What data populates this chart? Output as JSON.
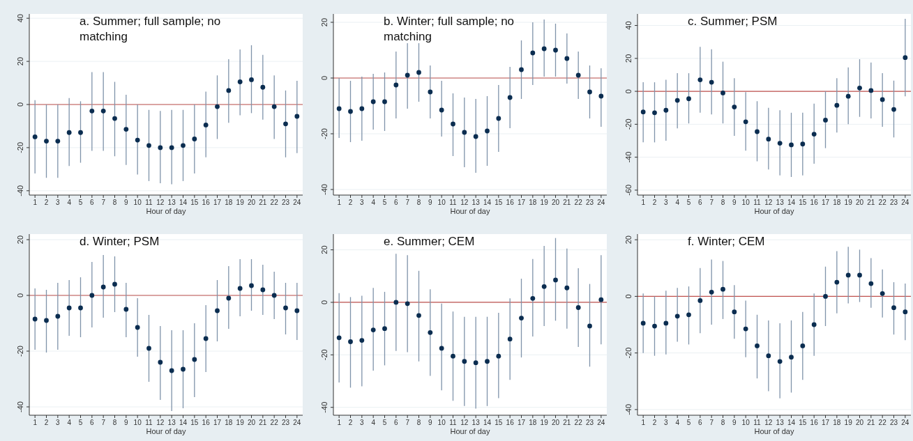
{
  "chart_data": [
    {
      "type": "scatter",
      "title": "a. Summer; full sample; no matching",
      "xlabel": "Hour of day",
      "x": [
        1,
        2,
        3,
        4,
        5,
        6,
        7,
        8,
        9,
        10,
        11,
        12,
        13,
        14,
        15,
        16,
        17,
        18,
        19,
        20,
        21,
        22,
        23,
        24
      ],
      "xlim": [
        0.5,
        24.5
      ],
      "xticks": [
        1,
        2,
        3,
        4,
        5,
        6,
        7,
        8,
        9,
        10,
        11,
        12,
        13,
        14,
        15,
        16,
        17,
        18,
        19,
        20,
        21,
        22,
        23,
        24
      ],
      "ylim": [
        -42,
        42
      ],
      "yticks": [
        -40,
        -20,
        0,
        20,
        40
      ],
      "grid": "y",
      "marker": "circle",
      "ref_lines": [
        {
          "axis": "y",
          "value": 0,
          "color": "#c0504d"
        }
      ],
      "series": [
        {
          "color": "#0b2d50",
          "values": [
            -15,
            -17,
            -17,
            -13,
            -13,
            -3,
            -3,
            -6.5,
            -11.5,
            -16.5,
            -19,
            -20,
            -20,
            -19,
            -16,
            -9.5,
            -1,
            6.5,
            10.5,
            11.5,
            8,
            -1,
            -9,
            -5.5
          ],
          "errors": [
            [
              -32,
              2
            ],
            [
              -34,
              0
            ],
            [
              -34,
              0
            ],
            [
              -28.5,
              3
            ],
            [
              -27,
              1.5
            ],
            [
              -21.5,
              15
            ],
            [
              -21.5,
              15
            ],
            [
              -24,
              10.5
            ],
            [
              -28,
              4.5
            ],
            [
              -32.5,
              0
            ],
            [
              -35.5,
              -2.5
            ],
            [
              -36.5,
              -3
            ],
            [
              -37,
              -2.5
            ],
            [
              -35.5,
              -2.5
            ],
            [
              -32,
              0
            ],
            [
              -24.5,
              6
            ],
            [
              -16,
              13.5
            ],
            [
              -8.5,
              21
            ],
            [
              -5,
              25.5
            ],
            [
              -4,
              27.5
            ],
            [
              -7,
              23
            ],
            [
              -16,
              13.5
            ],
            [
              -24.5,
              6.5
            ],
            [
              -22.5,
              11
            ]
          ]
        }
      ]
    },
    {
      "type": "scatter",
      "title": "b. Winter; full sample; no matching",
      "xlabel": "Hour of day",
      "x": [
        1,
        2,
        3,
        4,
        5,
        6,
        7,
        8,
        9,
        10,
        11,
        12,
        13,
        14,
        15,
        16,
        17,
        18,
        19,
        20,
        21,
        22,
        23,
        24
      ],
      "xlim": [
        0.5,
        24.5
      ],
      "xticks": [
        1,
        2,
        3,
        4,
        5,
        6,
        7,
        8,
        9,
        10,
        11,
        12,
        13,
        14,
        15,
        16,
        17,
        18,
        19,
        20,
        21,
        22,
        23,
        24
      ],
      "ylim": [
        -42,
        23
      ],
      "yticks": [
        -40,
        -20,
        0,
        20
      ],
      "grid": "y",
      "marker": "circle",
      "ref_lines": [
        {
          "axis": "y",
          "value": 0,
          "color": "#c0504d"
        }
      ],
      "series": [
        {
          "color": "#0b2d50",
          "values": [
            -11,
            -12,
            -11,
            -8.5,
            -8.5,
            -2.5,
            1,
            2,
            -5,
            -11.5,
            -16.5,
            -19.5,
            -21,
            -19,
            -14.5,
            -7,
            3,
            9,
            10.5,
            10,
            7,
            1,
            -5,
            -6.5
          ],
          "errors": [
            [
              -21.5,
              0
            ],
            [
              -23,
              -1
            ],
            [
              -22.5,
              0.5
            ],
            [
              -18.5,
              1.5
            ],
            [
              -19,
              2
            ],
            [
              -14.5,
              9.5
            ],
            [
              -11,
              12.5
            ],
            [
              -8.5,
              12.5
            ],
            [
              -14.5,
              4.5
            ],
            [
              -21,
              -1
            ],
            [
              -28,
              -5.5
            ],
            [
              -32,
              -7
            ],
            [
              -34,
              -7.5
            ],
            [
              -31.5,
              -6.5
            ],
            [
              -26.5,
              -2.5
            ],
            [
              -18,
              4
            ],
            [
              -7.5,
              13.5
            ],
            [
              -2.5,
              20
            ],
            [
              0.5,
              21
            ],
            [
              0.5,
              19.5
            ],
            [
              -2,
              16
            ],
            [
              -7.5,
              9.5
            ],
            [
              -14.5,
              4.5
            ],
            [
              -17.5,
              3.5
            ]
          ]
        }
      ]
    },
    {
      "type": "scatter",
      "title": "c. Summer; PSM",
      "xlabel": "Hour of day",
      "x": [
        1,
        2,
        3,
        4,
        5,
        6,
        7,
        8,
        9,
        10,
        11,
        12,
        13,
        14,
        15,
        16,
        17,
        18,
        19,
        20,
        21,
        22,
        23,
        24
      ],
      "xlim": [
        0.5,
        24.5
      ],
      "xticks": [
        1,
        2,
        3,
        4,
        5,
        6,
        7,
        8,
        9,
        10,
        11,
        12,
        13,
        14,
        15,
        16,
        17,
        18,
        19,
        20,
        21,
        22,
        23,
        24
      ],
      "ylim": [
        -63,
        47
      ],
      "yticks": [
        -60,
        -40,
        -20,
        0,
        20,
        40
      ],
      "grid": "y",
      "marker": "circle",
      "ref_lines": [
        {
          "axis": "y",
          "value": 0,
          "color": "#c0504d"
        }
      ],
      "series": [
        {
          "color": "#0b2d50",
          "values": [
            -12.5,
            -13,
            -11.5,
            -5.5,
            -4.5,
            7,
            5.5,
            -1,
            -9.5,
            -18.5,
            -24.5,
            -29,
            -31.5,
            -32.5,
            -32,
            -26,
            -17.5,
            -8.5,
            -3,
            2,
            0.5,
            -5,
            -11,
            20.5
          ],
          "errors": [
            [
              -31,
              5.5
            ],
            [
              -31,
              5.5
            ],
            [
              -30,
              7
            ],
            [
              -22.5,
              11
            ],
            [
              -19.5,
              11
            ],
            [
              -13,
              27
            ],
            [
              -14,
              25.5
            ],
            [
              -19.5,
              18
            ],
            [
              -27,
              8
            ],
            [
              -36,
              -0.5
            ],
            [
              -42.5,
              -6
            ],
            [
              -47.5,
              -10
            ],
            [
              -51,
              -11.5
            ],
            [
              -52,
              -13
            ],
            [
              -51,
              -13
            ],
            [
              -44,
              -7.5
            ],
            [
              -34.5,
              0
            ],
            [
              -25,
              8
            ],
            [
              -20,
              14.5
            ],
            [
              -15.5,
              19.5
            ],
            [
              -16.5,
              17.5
            ],
            [
              -21.5,
              11
            ],
            [
              -28,
              6.5
            ],
            [
              -3,
              44
            ]
          ]
        }
      ]
    },
    {
      "type": "scatter",
      "title": "d. Winter; PSM",
      "xlabel": "Hour of day",
      "x": [
        1,
        2,
        3,
        4,
        5,
        6,
        7,
        8,
        9,
        10,
        11,
        12,
        13,
        14,
        15,
        16,
        17,
        18,
        19,
        20,
        21,
        22,
        23,
        24
      ],
      "xlim": [
        0.5,
        24.5
      ],
      "xticks": [
        1,
        2,
        3,
        4,
        5,
        6,
        7,
        8,
        9,
        10,
        11,
        12,
        13,
        14,
        15,
        16,
        17,
        18,
        19,
        20,
        21,
        22,
        23,
        24
      ],
      "ylim": [
        -43,
        22
      ],
      "yticks": [
        -40,
        -20,
        0,
        20
      ],
      "grid": "y",
      "marker": "circle",
      "ref_lines": [
        {
          "axis": "y",
          "value": 0,
          "color": "#c0504d"
        }
      ],
      "series": [
        {
          "color": "#0b2d50",
          "values": [
            -8.5,
            -9,
            -7.5,
            -4.5,
            -4.5,
            0,
            3,
            4,
            -5,
            -11.5,
            -19,
            -24,
            -27,
            -26.5,
            -23,
            -15.5,
            -5.5,
            -1,
            2.5,
            3.5,
            2,
            0,
            -4.5,
            -5.5
          ],
          "errors": [
            [
              -19.5,
              2.5
            ],
            [
              -20.5,
              2
            ],
            [
              -19.5,
              4.5
            ],
            [
              -14.5,
              5.5
            ],
            [
              -15,
              6.5
            ],
            [
              -11.5,
              12
            ],
            [
              -8,
              14.5
            ],
            [
              -6,
              14
            ],
            [
              -15,
              4.5
            ],
            [
              -22,
              -1
            ],
            [
              -31,
              -7
            ],
            [
              -37.5,
              -11
            ],
            [
              -41.5,
              -12.5
            ],
            [
              -40.5,
              -12.5
            ],
            [
              -36.5,
              -10
            ],
            [
              -27.5,
              -3.5
            ],
            [
              -16.5,
              5.5
            ],
            [
              -12,
              10.5
            ],
            [
              -7.5,
              13
            ],
            [
              -5.5,
              13
            ],
            [
              -7,
              11
            ],
            [
              -8.5,
              8.5
            ],
            [
              -14,
              4.5
            ],
            [
              -16,
              4.5
            ]
          ]
        }
      ]
    },
    {
      "type": "scatter",
      "title": "e. Summer; CEM",
      "xlabel": "Hour of day",
      "x": [
        1,
        2,
        3,
        4,
        5,
        6,
        7,
        8,
        9,
        10,
        11,
        12,
        13,
        14,
        15,
        16,
        17,
        18,
        19,
        20,
        21,
        22,
        23,
        24
      ],
      "xlim": [
        0.5,
        24.5
      ],
      "xticks": [
        1,
        2,
        3,
        4,
        5,
        6,
        7,
        8,
        9,
        10,
        11,
        12,
        13,
        14,
        15,
        16,
        17,
        18,
        19,
        20,
        21,
        22,
        23,
        24
      ],
      "ylim": [
        -43,
        26
      ],
      "yticks": [
        -40,
        -20,
        0,
        20
      ],
      "grid": "y",
      "marker": "circle",
      "ref_lines": [
        {
          "axis": "y",
          "value": 0,
          "color": "#c0504d"
        }
      ],
      "series": [
        {
          "color": "#0b2d50",
          "values": [
            -13.5,
            -15,
            -14.5,
            -10.5,
            -10,
            0,
            -0.5,
            -5,
            -11.5,
            -17.5,
            -20.5,
            -22.5,
            -23,
            -22.5,
            -20.5,
            -14,
            -6,
            1.5,
            6,
            8.5,
            5.5,
            -2,
            -9,
            1
          ],
          "errors": [
            [
              -30.5,
              3.5
            ],
            [
              -32.5,
              2
            ],
            [
              -32,
              2.5
            ],
            [
              -26,
              5.5
            ],
            [
              -24,
              4
            ],
            [
              -18.5,
              18.5
            ],
            [
              -19,
              18
            ],
            [
              -22.5,
              12
            ],
            [
              -28,
              5
            ],
            [
              -33.5,
              -0.5
            ],
            [
              -37.5,
              -3.5
            ],
            [
              -39.5,
              -5.5
            ],
            [
              -40.5,
              -5.5
            ],
            [
              -39.5,
              -5.5
            ],
            [
              -36.5,
              -4
            ],
            [
              -29.5,
              1.5
            ],
            [
              -21,
              9
            ],
            [
              -13,
              16.5
            ],
            [
              -9,
              21.5
            ],
            [
              -7,
              24.5
            ],
            [
              -10,
              20.5
            ],
            [
              -17,
              13
            ],
            [
              -24.5,
              7
            ],
            [
              -16,
              18
            ]
          ]
        }
      ]
    },
    {
      "type": "scatter",
      "title": "f. Winter; CEM",
      "xlabel": "Hour of day",
      "x": [
        1,
        2,
        3,
        4,
        5,
        6,
        7,
        8,
        9,
        10,
        11,
        12,
        13,
        14,
        15,
        16,
        17,
        18,
        19,
        20,
        21,
        22,
        23,
        24
      ],
      "xlim": [
        0.5,
        24.5
      ],
      "xticks": [
        1,
        2,
        3,
        4,
        5,
        6,
        7,
        8,
        9,
        10,
        11,
        12,
        13,
        14,
        15,
        16,
        17,
        18,
        19,
        20,
        21,
        22,
        23,
        24
      ],
      "ylim": [
        -42,
        22
      ],
      "yticks": [
        -40,
        -20,
        0,
        20
      ],
      "grid": "y",
      "marker": "circle",
      "ref_lines": [
        {
          "axis": "y",
          "value": 0,
          "color": "#c0504d"
        }
      ],
      "series": [
        {
          "color": "#0b2d50",
          "values": [
            -9.5,
            -10.5,
            -9.5,
            -7,
            -6.5,
            -1.5,
            1.5,
            2.5,
            -5.5,
            -11.5,
            -17.5,
            -21,
            -23,
            -21.5,
            -17.5,
            -10,
            0,
            5,
            7.5,
            7.5,
            4.5,
            1,
            -4,
            -5.5
          ],
          "errors": [
            [
              -20,
              1
            ],
            [
              -21,
              0
            ],
            [
              -20.5,
              2
            ],
            [
              -16,
              3
            ],
            [
              -17,
              3.5
            ],
            [
              -13,
              10
            ],
            [
              -10,
              13
            ],
            [
              -8,
              12.5
            ],
            [
              -15,
              4
            ],
            [
              -21.5,
              -1.5
            ],
            [
              -29,
              -6.5
            ],
            [
              -33.5,
              -8.5
            ],
            [
              -36,
              -9.5
            ],
            [
              -34,
              -8.5
            ],
            [
              -29.5,
              -5.5
            ],
            [
              -21,
              1
            ],
            [
              -10.5,
              10.5
            ],
            [
              -6,
              16
            ],
            [
              -2.5,
              17.5
            ],
            [
              -2,
              16.5
            ],
            [
              -4,
              13.5
            ],
            [
              -7.5,
              9.5
            ],
            [
              -13.5,
              5
            ],
            [
              -15.5,
              4.5
            ]
          ]
        }
      ]
    }
  ]
}
